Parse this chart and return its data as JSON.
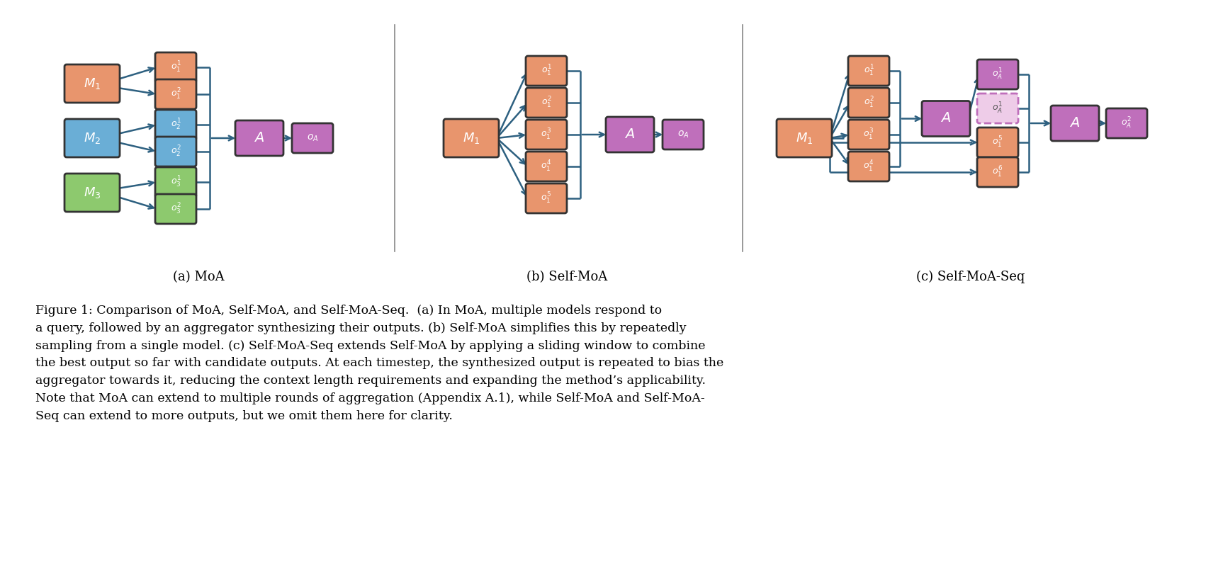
{
  "bg_color": "#ffffff",
  "arrow_color": "#2d6080",
  "box_colors": {
    "orange": "#E8956D",
    "blue": "#6aaed6",
    "green": "#8dc96e",
    "purple": "#bf6fbb",
    "purple_light": "#eecce8"
  },
  "caption_a": "(a) MoA",
  "caption_b": "(b) Self-MoA",
  "caption_c": "(c) Self-MoA-Seq",
  "figure_caption": "Figure 1: Comparison of MoA, Self-MoA, and Self-MoA-Seq.  (a) In MoA, multiple models respond to\na query, followed by an aggregator synthesizing their outputs. (b) Self-MoA simplifies this by repeatedly\nsampling from a single model. (c) Self-MoA-Seq extends Self-MoA by applying a sliding window to combine\nthe best output so far with candidate outputs. At each timestep, the synthesized output is repeated to bias the\naggregator towards it, reducing the context length requirements and expanding the method’s applicability.\nNote that MoA can extend to multiple rounds of aggregation (Appendix A.1), while Self-MoA and Self-MoA-\nSeq can extend to more outputs, but we omit them here for clarity."
}
